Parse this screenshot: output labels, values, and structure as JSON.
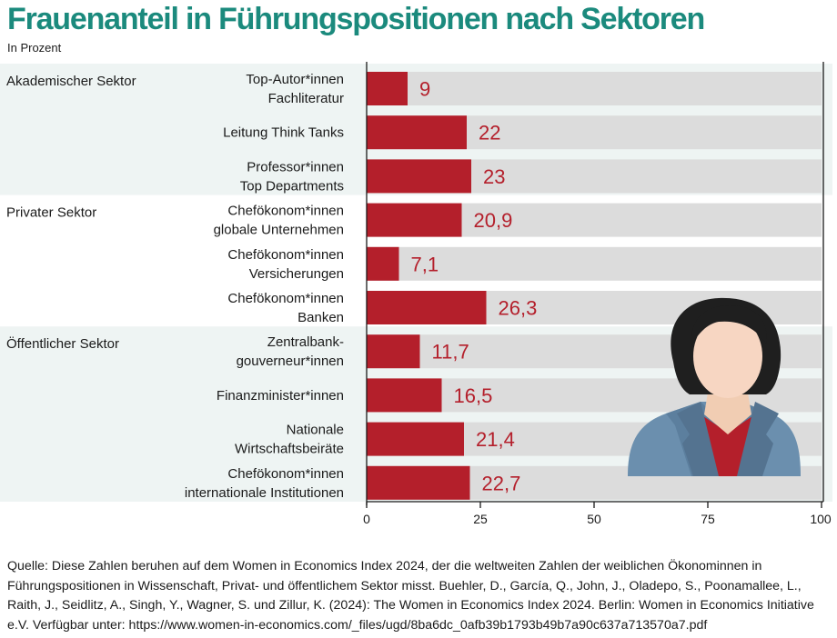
{
  "title": "Frauenanteil in Führungspositionen nach Sektoren",
  "subtitle": "In Prozent",
  "source": "Quelle: Diese Zahlen beruhen auf dem Women in Economics Index 2024, der die weltweiten Zahlen der weiblichen Ökonominnen in Führungspositionen in Wissenschaft, Privat- und öffentlichem Sektor misst. Buehler, D., García, Q., John, J., Oladepo, S., Poonamallee, L., Raith, J., Seidlitz, A., Singh, Y., Wagner, S. und Zillur, K. (2024): The Women in Economics Index 2024. Berlin: Women in Economics Initiative e.V. Verfügbar unter: https://www.women-in-economics.com/_files/ugd/8ba6dc_0afb39b1793b49b7a90c637a713570a7.pdf",
  "colors": {
    "title": "#1b8a7d",
    "bar": "#b41f2b",
    "track": "#dcdcdc",
    "band": "#eef4f3",
    "value": "#b41f2b"
  },
  "icon": "woman-avatar-icon",
  "chart_data": {
    "type": "bar",
    "orientation": "horizontal",
    "xlim": [
      0,
      100
    ],
    "xticks": [
      "0",
      "25",
      "50",
      "75",
      "100"
    ],
    "groups": [
      {
        "name": "Akademischer Sektor",
        "bars": [
          {
            "label": [
              "Top-Autor*innen",
              "Fachliteratur"
            ],
            "value": 9,
            "display": "9"
          },
          {
            "label": [
              "Leitung Think Tanks"
            ],
            "value": 22,
            "display": "22"
          },
          {
            "label": [
              "Professor*innen",
              "Top Departments"
            ],
            "value": 23,
            "display": "23"
          }
        ]
      },
      {
        "name": "Privater Sektor",
        "bars": [
          {
            "label": [
              "Chefökonom*innen",
              "globale Unternehmen"
            ],
            "value": 20.9,
            "display": "20,9"
          },
          {
            "label": [
              "Chefökonom*innen",
              "Versicherungen"
            ],
            "value": 7.1,
            "display": "7,1"
          },
          {
            "label": [
              "Chefökonom*innen",
              "Banken"
            ],
            "value": 26.3,
            "display": "26,3"
          }
        ]
      },
      {
        "name": "Öffentlicher Sektor",
        "bars": [
          {
            "label": [
              "Zentralbank-",
              "gouverneur*innen"
            ],
            "value": 11.7,
            "display": "11,7"
          },
          {
            "label": [
              "Finanzminister*innen"
            ],
            "value": 16.5,
            "display": "16,5"
          },
          {
            "label": [
              "Nationale",
              "Wirtschaftsbeiräte"
            ],
            "value": 21.4,
            "display": "21,4"
          },
          {
            "label": [
              "Chefökonom*innen",
              "internationale Institutionen"
            ],
            "value": 22.7,
            "display": "22,7"
          }
        ]
      }
    ]
  }
}
